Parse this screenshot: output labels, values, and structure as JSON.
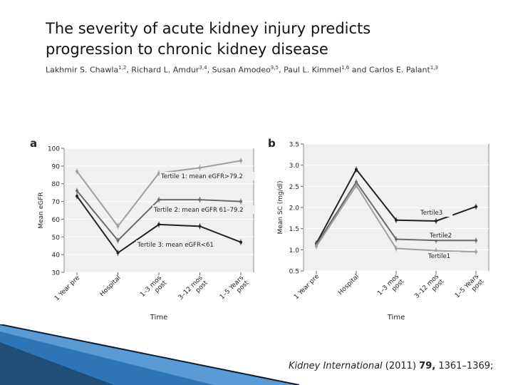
{
  "title": {
    "line1": "The severity of acute kidney injury predicts",
    "line2": "progression to chronic kidney disease"
  },
  "authors": [
    {
      "name": "Lakhmir S. Chawla",
      "sup": "1,2"
    },
    {
      "name": "Richard L. Amdur",
      "sup": "3,4"
    },
    {
      "name": "Susan Amodeo",
      "sup": "3,5"
    },
    {
      "name": "Paul L. Kimmel",
      "sup": "1,6"
    },
    {
      "name": "Carlos E. Palant",
      "sup": "1,3"
    }
  ],
  "author_connectors": [
    ", ",
    ", ",
    ", ",
    " and "
  ],
  "citation": {
    "journal": "Kidney International",
    "year": "(2011)",
    "volume": "79,",
    "pages": "1361–1369;"
  },
  "chart_data": [
    {
      "panel_label": "a",
      "type": "line",
      "ylabel": "Mean eGFR",
      "xlabel": "Time",
      "ylim": [
        30,
        100
      ],
      "yticks": [
        "30",
        "40",
        "50",
        "60",
        "70",
        "80",
        "90",
        "100"
      ],
      "categories": [
        "1 Year pre",
        "Hospital",
        "1–3 mos post",
        "3–12 mos post",
        "1–5 Years post"
      ],
      "category_lines": [
        [
          "1 Year pre"
        ],
        [
          "Hospital"
        ],
        [
          "1–3 mos",
          "post"
        ],
        [
          "3–12 mos",
          "post"
        ],
        [
          "1–5 Years",
          "post"
        ]
      ],
      "series": [
        {
          "name": "Tertile 1: mean eGFR>79.2",
          "values": [
            87,
            56,
            86,
            89,
            93
          ],
          "color": "#9e9e9e"
        },
        {
          "name": "Tertile 2: mean eGFR 61–79.2",
          "values": [
            76,
            48,
            71,
            71,
            70
          ],
          "color": "#6a6a6a"
        },
        {
          "name": "Tertile 3: mean eGFR<61",
          "values": [
            73,
            41,
            57,
            56,
            47
          ],
          "color": "#222222"
        }
      ]
    },
    {
      "panel_label": "b",
      "type": "line",
      "ylabel": "Mean SC (mg/dl)",
      "xlabel": "Time",
      "ylim": [
        0.5,
        3.5
      ],
      "yticks": [
        "0.5",
        "1.0",
        "1.5",
        "2.0",
        "2.5",
        "3.0",
        "3.5"
      ],
      "categories": [
        "1 Year pre",
        "Hospital",
        "1–3 mos post",
        "3–12 mos post",
        "1–5 Years post"
      ],
      "category_lines": [
        [
          "1 Year pre"
        ],
        [
          "Hospital"
        ],
        [
          "1–3 mos",
          "post"
        ],
        [
          "3–12 mos",
          "post"
        ],
        [
          "1–5 Years",
          "post"
        ]
      ],
      "series": [
        {
          "name": "Tertile3",
          "values": [
            1.15,
            2.9,
            1.7,
            1.68,
            2.02
          ],
          "color": "#222222"
        },
        {
          "name": "Tertile2",
          "values": [
            1.12,
            2.6,
            1.25,
            1.22,
            1.22
          ],
          "color": "#6a6a6a"
        },
        {
          "name": "Tertile1",
          "values": [
            1.08,
            2.52,
            1.03,
            0.98,
            0.95
          ],
          "color": "#a0a0a0"
        }
      ]
    }
  ]
}
